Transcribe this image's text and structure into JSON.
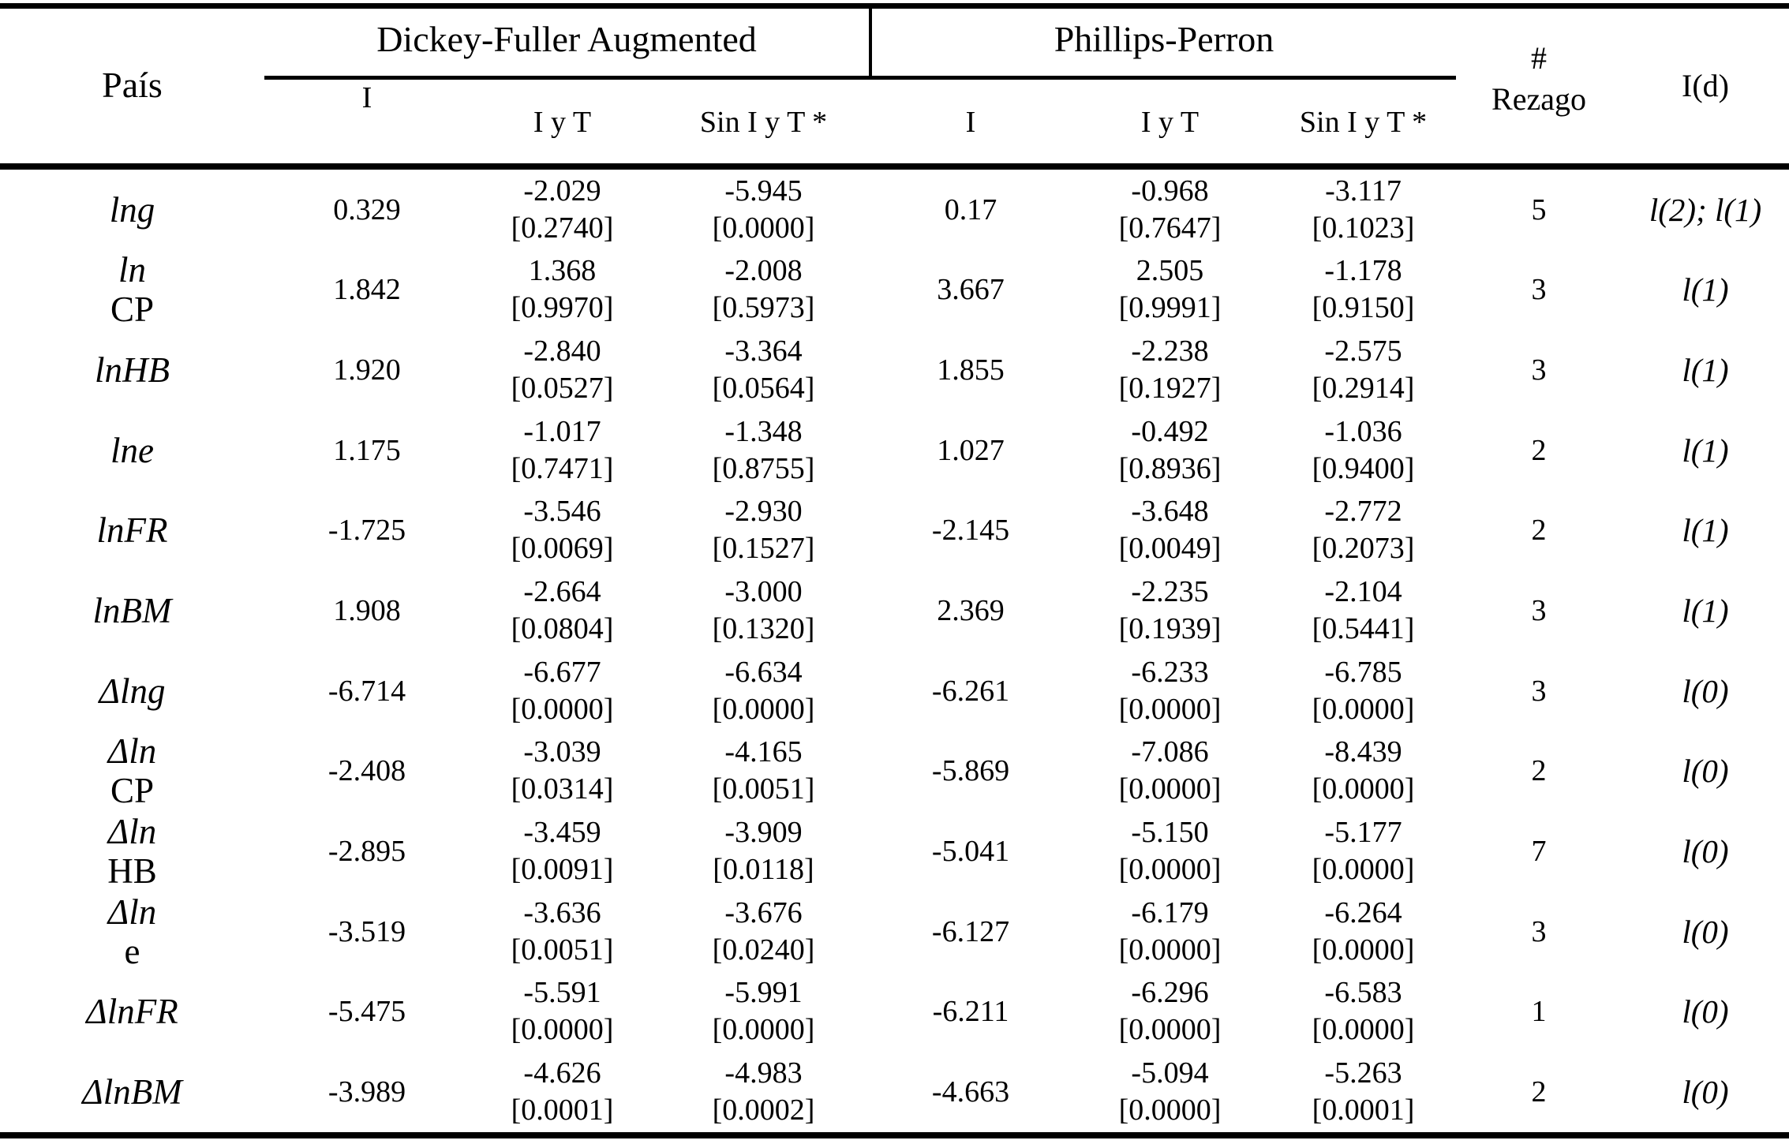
{
  "colors": {
    "text": "#000000",
    "background": "#ffffff",
    "line": "#000000"
  },
  "table": {
    "title_col": "País",
    "group1": "Dickey-Fuller Augmented",
    "group2": "Phillips-Perron",
    "sub_i": "I",
    "sub_iyt": "I y T",
    "sub_sin": "Sin I y T *",
    "rezago_header_line1": "#",
    "rezago_header_line2": "Rezago",
    "id_header": "I(d)",
    "rows": [
      {
        "label_italic": "lng",
        "label_roman": "",
        "dfa_i": "0.329",
        "dfa_iyt": "-2.029",
        "dfa_iyt_p": "[0.2740]",
        "dfa_sin": "-5.945",
        "dfa_sin_p": "[0.0000]",
        "pp_i": "0.17",
        "pp_iyt": "-0.968",
        "pp_iyt_p": "[0.7647]",
        "pp_sin": "-3.117",
        "pp_sin_p": "[0.1023]",
        "rezago": "5",
        "id": "l(2); l(1)"
      },
      {
        "label_italic": "ln",
        "label_roman": "CP",
        "dfa_i": "1.842",
        "dfa_iyt": "1.368",
        "dfa_iyt_p": "[0.9970]",
        "dfa_sin": "-2.008",
        "dfa_sin_p": "[0.5973]",
        "pp_i": "3.667",
        "pp_iyt": "2.505",
        "pp_iyt_p": "[0.9991]",
        "pp_sin": "-1.178",
        "pp_sin_p": "[0.9150]",
        "rezago": "3",
        "id": "l(1)"
      },
      {
        "label_italic": "lnHB",
        "label_roman": "",
        "dfa_i": "1.920",
        "dfa_iyt": "-2.840",
        "dfa_iyt_p": "[0.0527]",
        "dfa_sin": "-3.364",
        "dfa_sin_p": "[0.0564]",
        "pp_i": "1.855",
        "pp_iyt": "-2.238",
        "pp_iyt_p": "[0.1927]",
        "pp_sin": "-2.575",
        "pp_sin_p": "[0.2914]",
        "rezago": "3",
        "id": "l(1)"
      },
      {
        "label_italic": "lne",
        "label_roman": "",
        "dfa_i": "1.175",
        "dfa_iyt": "-1.017",
        "dfa_iyt_p": "[0.7471]",
        "dfa_sin": "-1.348",
        "dfa_sin_p": "[0.8755]",
        "pp_i": "1.027",
        "pp_iyt": "-0.492",
        "pp_iyt_p": "[0.8936]",
        "pp_sin": "-1.036",
        "pp_sin_p": "[0.9400]",
        "rezago": "2",
        "id": "l(1)"
      },
      {
        "label_italic": "lnFR",
        "label_roman": "",
        "dfa_i": "-1.725",
        "dfa_iyt": "-3.546",
        "dfa_iyt_p": "[0.0069]",
        "dfa_sin": "-2.930",
        "dfa_sin_p": "[0.1527]",
        "pp_i": "-2.145",
        "pp_iyt": "-3.648",
        "pp_iyt_p": "[0.0049]",
        "pp_sin": "-2.772",
        "pp_sin_p": "[0.2073]",
        "rezago": "2",
        "id": "l(1)"
      },
      {
        "label_italic": "lnBM",
        "label_roman": "",
        "dfa_i": "1.908",
        "dfa_iyt": "-2.664",
        "dfa_iyt_p": "[0.0804]",
        "dfa_sin": "-3.000",
        "dfa_sin_p": "[0.1320]",
        "pp_i": "2.369",
        "pp_iyt": "-2.235",
        "pp_iyt_p": "[0.1939]",
        "pp_sin": "-2.104",
        "pp_sin_p": "[0.5441]",
        "rezago": "3",
        "id": "l(1)"
      },
      {
        "label_italic": "Δlng",
        "label_roman": "",
        "dfa_i": "-6.714",
        "dfa_iyt": "-6.677",
        "dfa_iyt_p": "[0.0000]",
        "dfa_sin": "-6.634",
        "dfa_sin_p": "[0.0000]",
        "pp_i": "-6.261",
        "pp_iyt": "-6.233",
        "pp_iyt_p": "[0.0000]",
        "pp_sin": "-6.785",
        "pp_sin_p": "[0.0000]",
        "rezago": "3",
        "id": "l(0)"
      },
      {
        "label_italic": "Δln",
        "label_roman": "CP",
        "dfa_i": "-2.408",
        "dfa_iyt": "-3.039",
        "dfa_iyt_p": "[0.0314]",
        "dfa_sin": "-4.165",
        "dfa_sin_p": "[0.0051]",
        "pp_i": "-5.869",
        "pp_iyt": "-7.086",
        "pp_iyt_p": "[0.0000]",
        "pp_sin": "-8.439",
        "pp_sin_p": "[0.0000]",
        "rezago": "2",
        "id": "l(0)"
      },
      {
        "label_italic": "Δln",
        "label_roman": "HB",
        "dfa_i": "-2.895",
        "dfa_iyt": "-3.459",
        "dfa_iyt_p": "[0.0091]",
        "dfa_sin": "-3.909",
        "dfa_sin_p": "[0.0118]",
        "pp_i": "-5.041",
        "pp_iyt": "-5.150",
        "pp_iyt_p": "[0.0000]",
        "pp_sin": "-5.177",
        "pp_sin_p": "[0.0000]",
        "rezago": "7",
        "id": "l(0)"
      },
      {
        "label_italic": "Δln",
        "label_roman": "e",
        "dfa_i": "-3.519",
        "dfa_iyt": "-3.636",
        "dfa_iyt_p": "[0.0051]",
        "dfa_sin": "-3.676",
        "dfa_sin_p": "[0.0240]",
        "pp_i": "-6.127",
        "pp_iyt": "-6.179",
        "pp_iyt_p": "[0.0000]",
        "pp_sin": "-6.264",
        "pp_sin_p": "[0.0000]",
        "rezago": "3",
        "id": "l(0)"
      },
      {
        "label_italic": "ΔlnFR",
        "label_roman": "",
        "dfa_i": "-5.475",
        "dfa_iyt": "-5.591",
        "dfa_iyt_p": "[0.0000]",
        "dfa_sin": "-5.991",
        "dfa_sin_p": "[0.0000]",
        "pp_i": "-6.211",
        "pp_iyt": "-6.296",
        "pp_iyt_p": "[0.0000]",
        "pp_sin": "-6.583",
        "pp_sin_p": "[0.0000]",
        "rezago": "1",
        "id": "l(0)"
      },
      {
        "label_italic": "ΔlnBM",
        "label_roman": "",
        "dfa_i": "-3.989",
        "dfa_iyt": "-4.626",
        "dfa_iyt_p": "[0.0001]",
        "dfa_sin": "-4.983",
        "dfa_sin_p": "[0.0002]",
        "pp_i": "-4.663",
        "pp_iyt": "-5.094",
        "pp_iyt_p": "[0.0000]",
        "pp_sin": "-5.263",
        "pp_sin_p": "[0.0001]",
        "rezago": "2",
        "id": "l(0)"
      }
    ]
  }
}
